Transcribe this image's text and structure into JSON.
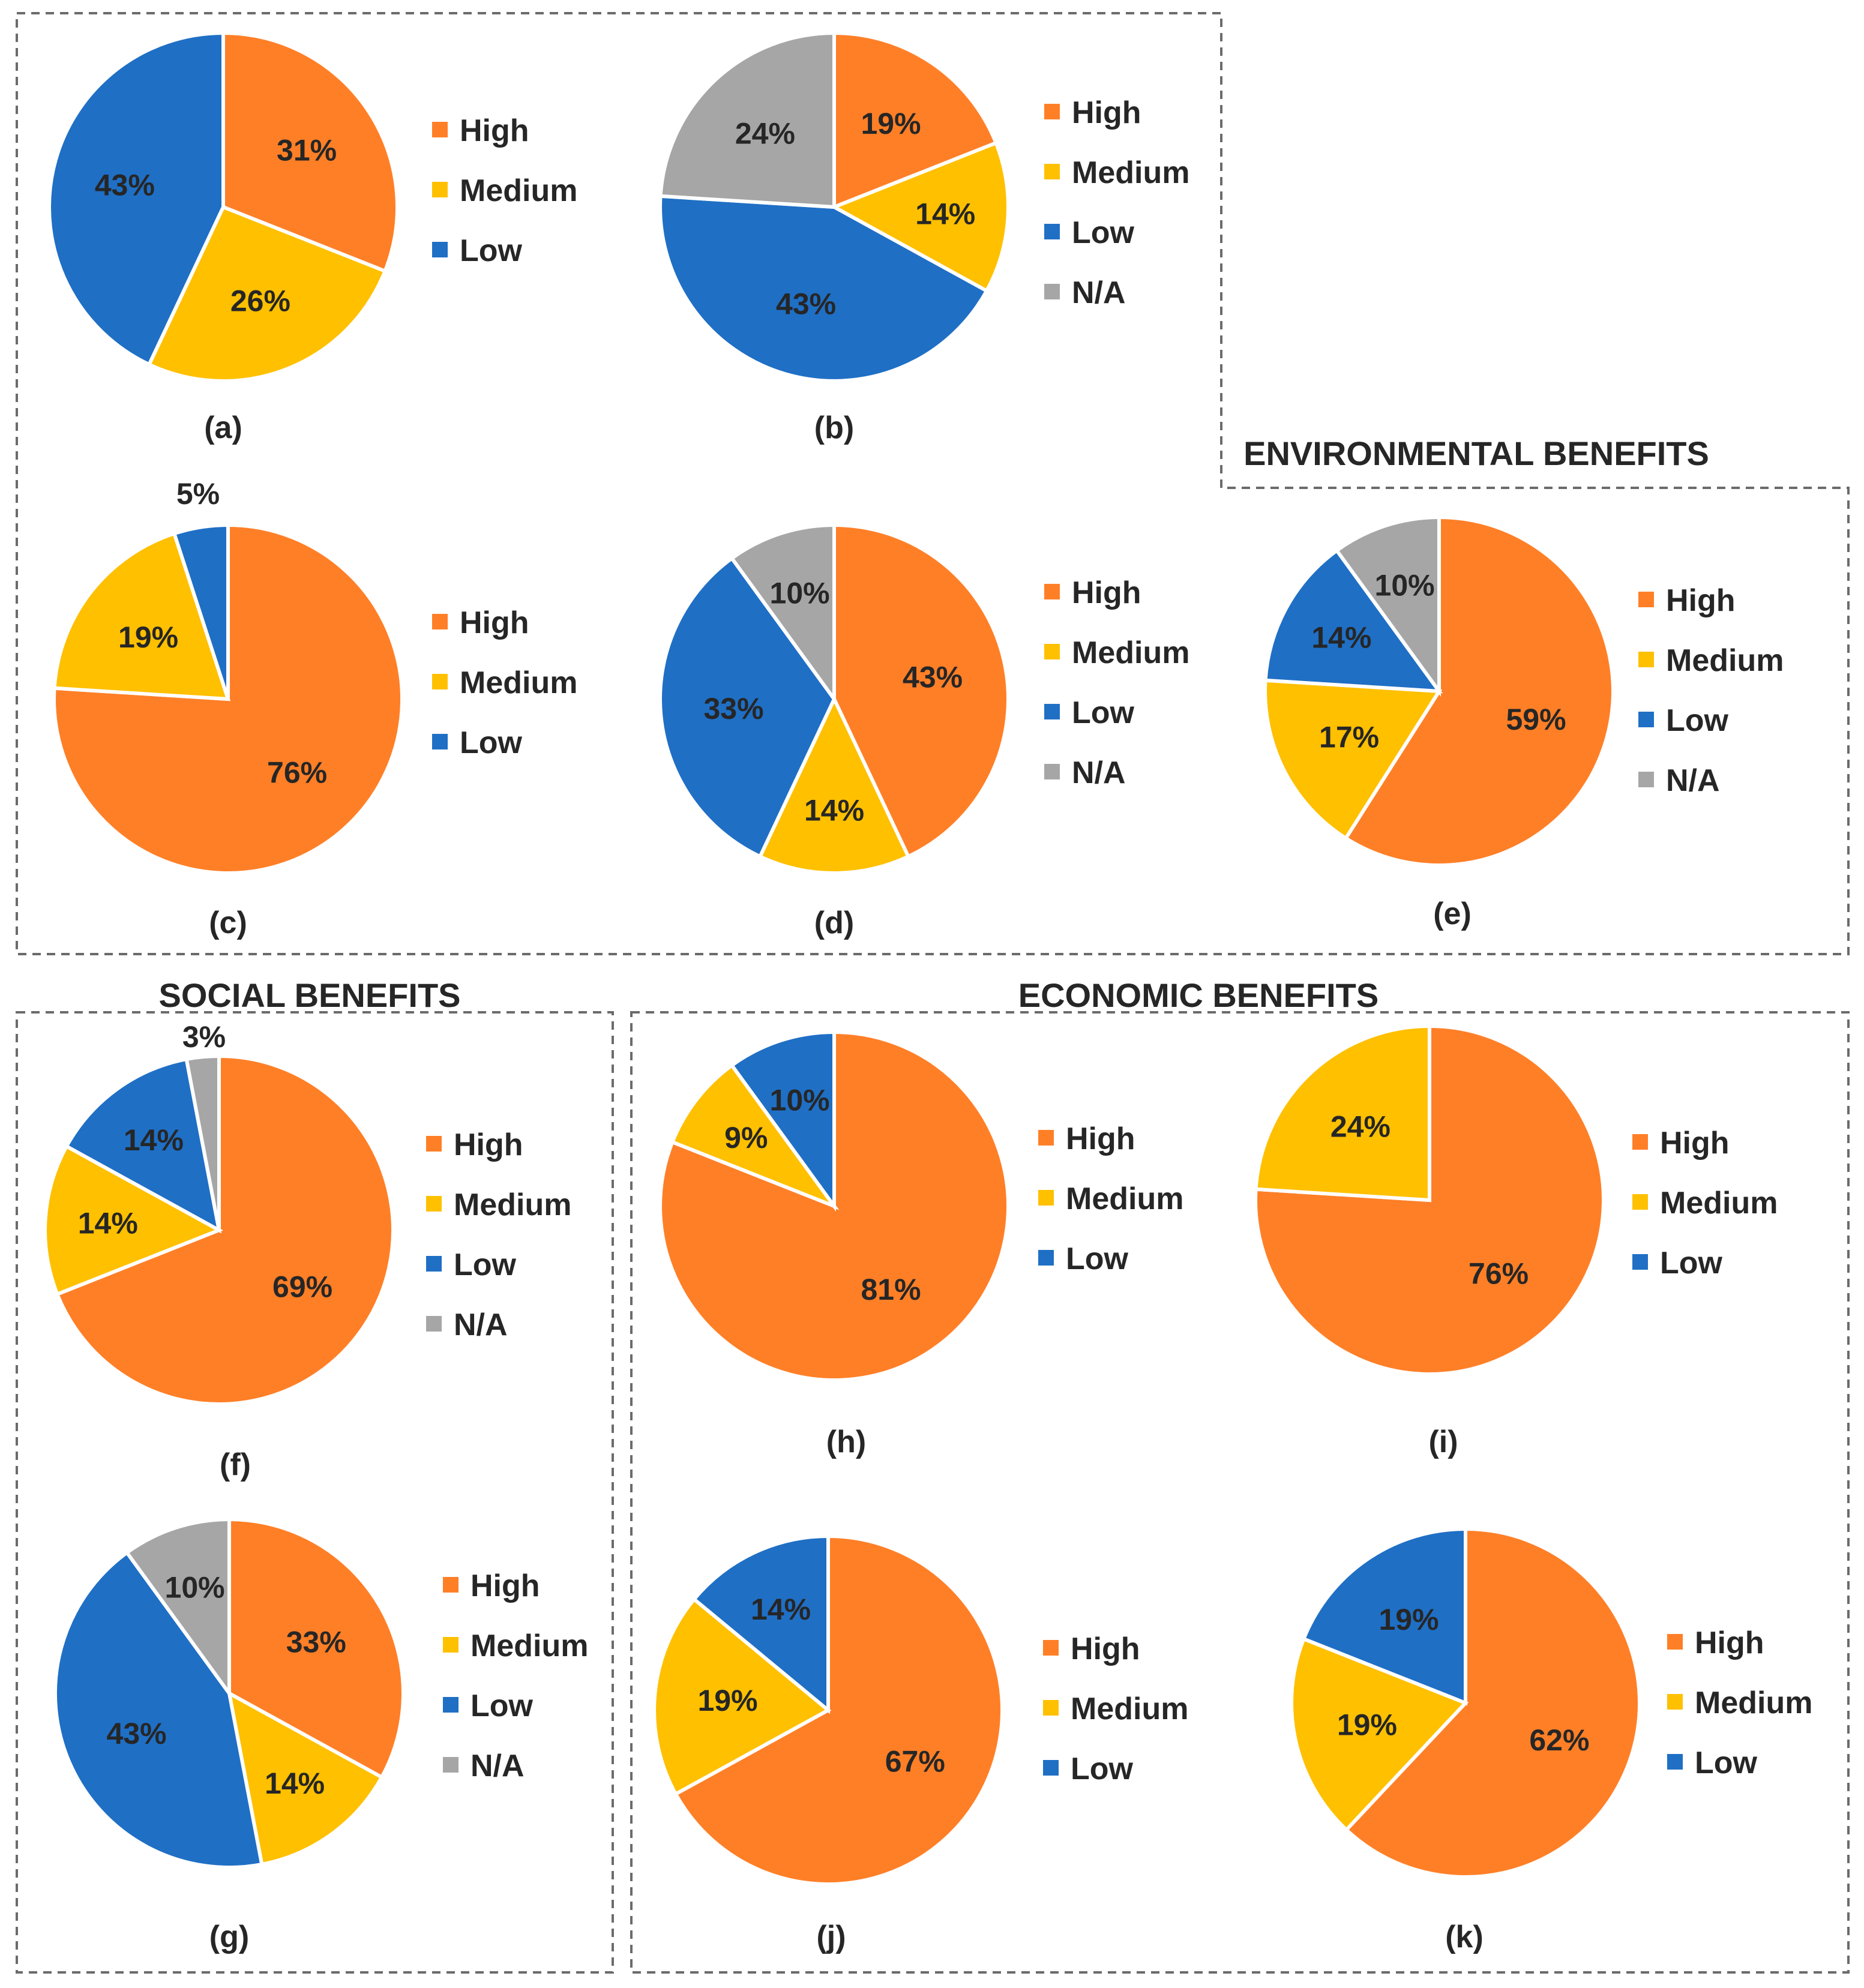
{
  "sections": {
    "environmental": "ENVIRONMENTAL BENEFITS",
    "social": "SOCIAL BENEFITS",
    "economic": "ECONOMIC BENEFITS"
  },
  "colors": {
    "High": "#ff7f27",
    "Medium": "#ffc000",
    "Low": "#1f6fc5",
    "N/A": "#a6a6a6"
  },
  "chart_data": [
    {
      "id": "a",
      "type": "pie",
      "caption": "(a)",
      "labels": [
        "High",
        "Medium",
        "Low"
      ],
      "values": [
        31,
        26,
        43
      ],
      "value_labels": [
        "31%",
        "26%",
        "43%"
      ],
      "legend": [
        "High",
        "Medium",
        "Low"
      ]
    },
    {
      "id": "b",
      "type": "pie",
      "caption": "(b)",
      "labels": [
        "High",
        "Medium",
        "Low",
        "N/A"
      ],
      "values": [
        19,
        14,
        43,
        24
      ],
      "value_labels": [
        "19%",
        "14%",
        "43%",
        "24%"
      ],
      "legend": [
        "High",
        "Medium",
        "Low",
        "N/A"
      ]
    },
    {
      "id": "c",
      "type": "pie",
      "caption": "(c)",
      "labels": [
        "High",
        "Medium",
        "Low"
      ],
      "values": [
        76,
        19,
        5
      ],
      "value_labels": [
        "76%",
        "19%",
        "5%"
      ],
      "legend": [
        "High",
        "Medium",
        "Low"
      ]
    },
    {
      "id": "d",
      "type": "pie",
      "caption": "(d)",
      "labels": [
        "High",
        "Medium",
        "Low",
        "N/A"
      ],
      "values": [
        43,
        14,
        33,
        10
      ],
      "value_labels": [
        "43%",
        "14%",
        "33%",
        "10%"
      ],
      "legend": [
        "High",
        "Medium",
        "Low",
        "N/A"
      ]
    },
    {
      "id": "e",
      "type": "pie",
      "caption": "(e)",
      "labels": [
        "High",
        "Medium",
        "Low",
        "N/A"
      ],
      "values": [
        59,
        17,
        14,
        10
      ],
      "value_labels": [
        "59%",
        "17%",
        "14%",
        "10%"
      ],
      "legend": [
        "High",
        "Medium",
        "Low",
        "N/A"
      ]
    },
    {
      "id": "f",
      "type": "pie",
      "caption": "(f)",
      "labels": [
        "High",
        "Medium",
        "Low",
        "N/A"
      ],
      "values": [
        69,
        14,
        14,
        3
      ],
      "value_labels": [
        "69%",
        "14%",
        "14%",
        "3%"
      ],
      "legend": [
        "High",
        "Medium",
        "Low",
        "N/A"
      ]
    },
    {
      "id": "g",
      "type": "pie",
      "caption": "(g)",
      "labels": [
        "High",
        "Medium",
        "Low",
        "N/A"
      ],
      "values": [
        33,
        14,
        43,
        10
      ],
      "value_labels": [
        "33%",
        "14%",
        "43%",
        "10%"
      ],
      "legend": [
        "High",
        "Medium",
        "Low",
        "N/A"
      ]
    },
    {
      "id": "h",
      "type": "pie",
      "caption": "(h)",
      "labels": [
        "High",
        "Medium",
        "Low"
      ],
      "values": [
        81,
        9,
        10
      ],
      "value_labels": [
        "81%",
        "9%",
        "10%"
      ],
      "legend": [
        "High",
        "Medium",
        "Low"
      ]
    },
    {
      "id": "i",
      "type": "pie",
      "caption": "(i)",
      "labels": [
        "High",
        "Medium",
        "Low"
      ],
      "values": [
        76,
        24,
        0
      ],
      "value_labels": [
        "76%",
        "24%",
        ""
      ],
      "legend": [
        "High",
        "Medium",
        "Low"
      ]
    },
    {
      "id": "j",
      "type": "pie",
      "caption": "(j)",
      "labels": [
        "High",
        "Medium",
        "Low"
      ],
      "values": [
        67,
        19,
        14
      ],
      "value_labels": [
        "67%",
        "19%",
        "14%"
      ],
      "legend": [
        "High",
        "Medium",
        "Low"
      ]
    },
    {
      "id": "k",
      "type": "pie",
      "caption": "(k)",
      "labels": [
        "High",
        "Medium",
        "Low"
      ],
      "values": [
        62,
        19,
        19
      ],
      "value_labels": [
        "62%",
        "19%",
        "19%"
      ],
      "legend": [
        "High",
        "Medium",
        "Low"
      ]
    }
  ]
}
